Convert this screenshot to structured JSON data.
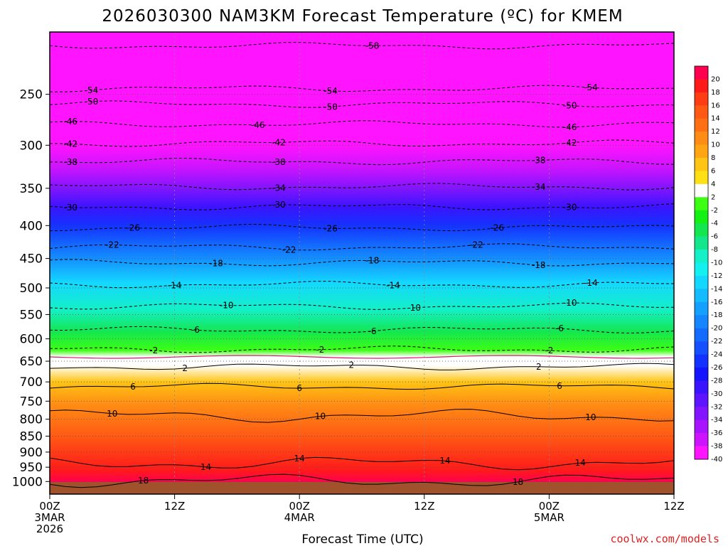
{
  "chart_data": {
    "type": "heatmap",
    "title": "2026030300 NAM3KM Forecast Temperature (ºC) for KMEM",
    "xlabel": "Forecast Time (UTC)",
    "ylabel": "",
    "credit": "coolwx.com/models",
    "x_ticks": [
      {
        "hour": 0,
        "line1": "00Z",
        "line2": "3MAR",
        "line3": "2026"
      },
      {
        "hour": 12,
        "line1": "12Z",
        "line2": "",
        "line3": ""
      },
      {
        "hour": 24,
        "line1": "00Z",
        "line2": "4MAR",
        "line3": ""
      },
      {
        "hour": 36,
        "line1": "12Z",
        "line2": "",
        "line3": ""
      },
      {
        "hour": 48,
        "line1": "00Z",
        "line2": "5MAR",
        "line3": ""
      },
      {
        "hour": 60,
        "line1": "12Z",
        "line2": "",
        "line3": ""
      }
    ],
    "xlim": [
      0,
      60
    ],
    "y_scale": "log-pressure",
    "y_ticks": [
      "250",
      "300",
      "350",
      "400",
      "450",
      "500",
      "550",
      "600",
      "650",
      "700",
      "750",
      "800",
      "850",
      "900",
      "950",
      "1000"
    ],
    "ylim": [
      200,
      1025
    ],
    "grid": true,
    "colorbar": {
      "position": "right",
      "labels": [
        "20",
        "18",
        "16",
        "14",
        "12",
        "10",
        "8",
        "6",
        "4",
        "2",
        "-2",
        "-4",
        "-6",
        "-8",
        "-10",
        "-12",
        "-14",
        "-16",
        "-18",
        "-20",
        "-22",
        "-24",
        "-26",
        "-28",
        "-30",
        "-32",
        "-34",
        "-36",
        "-38",
        "-40"
      ],
      "colors": [
        "#ff0050",
        "#ff1a1a",
        "#ff3d14",
        "#ff5a14",
        "#ff7014",
        "#ff8c14",
        "#ffa514",
        "#ffc414",
        "#ffe014",
        "#ffffff",
        "#3cff14",
        "#14f014",
        "#14e650",
        "#14e68c",
        "#14f0c8",
        "#14f0f0",
        "#14d7ff",
        "#14bcff",
        "#14a0ff",
        "#1486ff",
        "#146cff",
        "#1450ff",
        "#1432ff",
        "#1414ff",
        "#3a14ff",
        "#5e14ff",
        "#8214ff",
        "#a814ff",
        "#cc14ff",
        "#ff14ff"
      ]
    },
    "profile": [
      {
        "p": 200,
        "t": -60
      },
      {
        "p": 250,
        "t": -54
      },
      {
        "p": 275,
        "t": -48
      },
      {
        "p": 300,
        "t": -42
      },
      {
        "p": 325,
        "t": -38
      },
      {
        "p": 350,
        "t": -34
      },
      {
        "p": 375,
        "t": -30
      },
      {
        "p": 400,
        "t": -26
      },
      {
        "p": 430,
        "t": -22
      },
      {
        "p": 460,
        "t": -18
      },
      {
        "p": 490,
        "t": -14
      },
      {
        "p": 540,
        "t": -10
      },
      {
        "p": 585,
        "t": -6
      },
      {
        "p": 625,
        "t": -2
      },
      {
        "p": 640,
        "t": 0
      },
      {
        "p": 660,
        "t": 2
      },
      {
        "p": 700,
        "t": 6
      },
      {
        "p": 760,
        "t": 10
      },
      {
        "p": 850,
        "t": 14
      },
      {
        "p": 960,
        "t": 18
      },
      {
        "p": 1010,
        "t": 20
      }
    ],
    "contours": [
      {
        "t": -58,
        "p": 210,
        "label_hours": [
          31
        ]
      },
      {
        "t": -54,
        "p": 245,
        "label_hours": [
          4,
          27,
          52
        ]
      },
      {
        "t": -50,
        "p": 259,
        "label_hours": [
          4,
          27,
          50
        ]
      },
      {
        "t": -46,
        "p": 278,
        "label_hours": [
          2,
          20,
          50
        ]
      },
      {
        "t": -42,
        "p": 298,
        "label_hours": [
          2,
          22,
          50
        ]
      },
      {
        "t": -38,
        "p": 318,
        "label_hours": [
          2,
          22,
          47
        ]
      },
      {
        "t": -34,
        "p": 348,
        "label_hours": [
          22,
          47
        ]
      },
      {
        "t": -30,
        "p": 374,
        "label_hours": [
          2,
          22,
          50
        ]
      },
      {
        "t": -26,
        "p": 403,
        "label_hours": [
          8,
          27,
          43
        ]
      },
      {
        "t": -22,
        "p": 432,
        "label_hours": [
          6,
          23,
          41
        ]
      },
      {
        "t": -18,
        "p": 457,
        "label_hours": [
          16,
          31,
          47
        ]
      },
      {
        "t": -14,
        "p": 494,
        "label_hours": [
          12,
          33,
          52
        ]
      },
      {
        "t": -10,
        "p": 534,
        "label_hours": [
          17,
          35,
          50
        ]
      },
      {
        "t": -6,
        "p": 581,
        "label_hours": [
          14,
          31,
          49
        ]
      },
      {
        "t": -2,
        "p": 623,
        "label_hours": [
          10,
          26,
          48
        ]
      },
      {
        "t": 2,
        "p": 663,
        "label_hours": [
          13,
          29,
          47
        ]
      },
      {
        "t": 6,
        "p": 712,
        "label_hours": [
          8,
          24,
          49
        ]
      },
      {
        "t": 10,
        "p": 790,
        "label_hours": [
          6,
          26,
          52
        ]
      },
      {
        "t": 14,
        "p": 936,
        "label_hours": [
          15,
          24,
          38,
          51
        ]
      },
      {
        "t": 18,
        "p": 997,
        "label_hours": [
          9,
          45
        ]
      }
    ]
  }
}
